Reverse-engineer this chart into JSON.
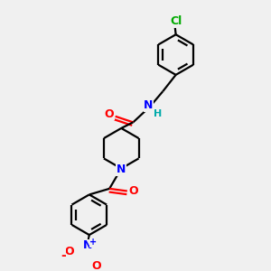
{
  "bg_color": "#f0f0f0",
  "bond_color": "#000000",
  "bond_width": 1.6,
  "N_color": "#0000ff",
  "O_color": "#ff0000",
  "Cl_color": "#00aa00",
  "H_color": "#00aaaa",
  "figsize": [
    3.0,
    3.0
  ],
  "dpi": 100,
  "xlim": [
    0,
    10
  ],
  "ylim": [
    0,
    10
  ]
}
